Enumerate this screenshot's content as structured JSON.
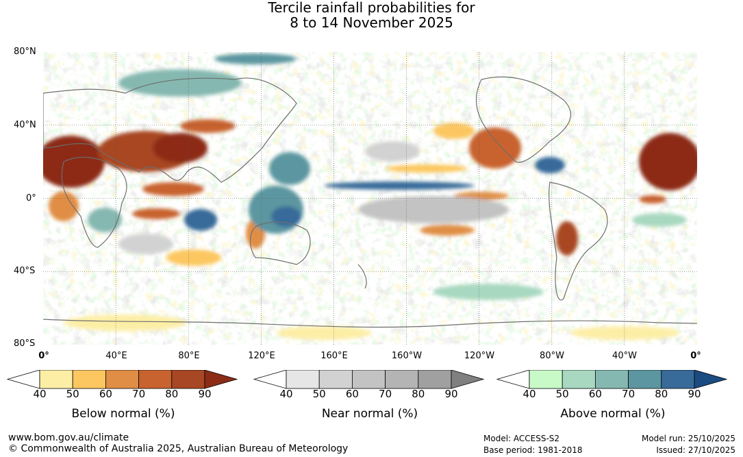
{
  "title": {
    "line1": "Tercile rainfall probabilities for",
    "line2": "8 to 14 November 2025"
  },
  "axes": {
    "lat_labels": [
      "80°N",
      "40°N",
      "0°",
      "40°S",
      "80°S"
    ],
    "lon_labels": [
      "0°",
      "40°E",
      "80°E",
      "120°E",
      "160°E",
      "160°W",
      "120°W",
      "80°W",
      "40°W",
      "0°"
    ]
  },
  "legends": [
    {
      "title": "Below normal (%)",
      "ticks": [
        "40",
        "50",
        "60",
        "70",
        "80",
        "90"
      ],
      "colors": [
        "#ffffff",
        "#fdeea6",
        "#fcc760",
        "#e08e45",
        "#c8622f",
        "#a84724",
        "#8c2c17"
      ]
    },
    {
      "title": "Near normal (%)",
      "ticks": [
        "40",
        "50",
        "60",
        "70",
        "80",
        "90"
      ],
      "colors": [
        "#ffffff",
        "#e6e6e6",
        "#d2d2d2",
        "#c3c3c3",
        "#b4b4b4",
        "#a0a0a0",
        "#808080"
      ]
    },
    {
      "title": "Above normal (%)",
      "ticks": [
        "40",
        "50",
        "60",
        "70",
        "80",
        "90"
      ],
      "colors": [
        "#ffffff",
        "#c8fac8",
        "#a8d8c0",
        "#85b8b0",
        "#5c96a0",
        "#386a9a",
        "#1a4c82"
      ]
    }
  ],
  "footer": {
    "website": "www.bom.gov.au/climate",
    "copyright": "© Commonwealth of Australia 2025, Australian Bureau of Meteorology",
    "model": "Model: ACCESS-S2",
    "base_period": "Base period: 1981-2018",
    "model_run": "Model run: 25/10/2025",
    "issued": "Issued: 27/10/2025"
  }
}
